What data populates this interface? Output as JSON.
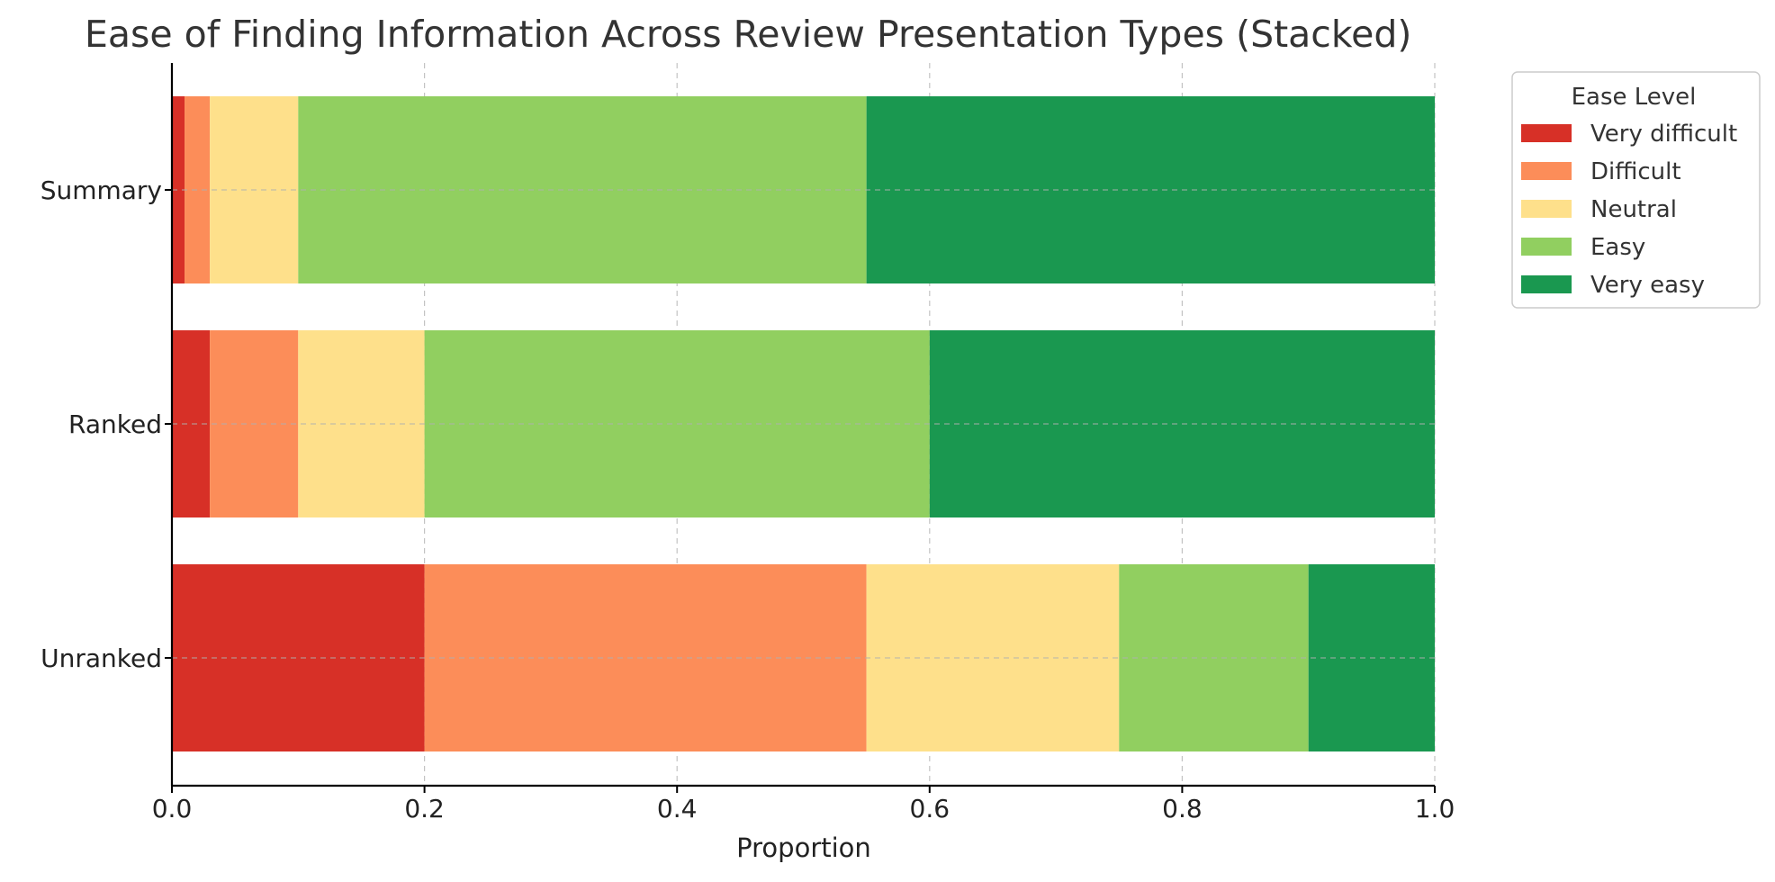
{
  "chart_data": {
    "type": "bar",
    "orientation": "horizontal",
    "stacked": true,
    "title": "Ease of Finding Information Across Review Presentation Types (Stacked)",
    "xlabel": "Proportion",
    "ylabel": "",
    "xlim": [
      0,
      1
    ],
    "xticks": [
      "0.0",
      "0.2",
      "0.4",
      "0.6",
      "0.8",
      "1.0"
    ],
    "grid": true,
    "categories": [
      "Summary",
      "Ranked",
      "Unranked"
    ],
    "series": [
      {
        "name": "Very difficult",
        "color": "#d73027",
        "values": [
          0.01,
          0.03,
          0.2
        ]
      },
      {
        "name": "Difficult",
        "color": "#fc8d59",
        "values": [
          0.02,
          0.07,
          0.35
        ]
      },
      {
        "name": "Neutral",
        "color": "#fee08b",
        "values": [
          0.07,
          0.1,
          0.2
        ]
      },
      {
        "name": "Easy",
        "color": "#91cf60",
        "values": [
          0.45,
          0.4,
          0.15
        ]
      },
      {
        "name": "Very easy",
        "color": "#1a9850",
        "values": [
          0.45,
          0.4,
          0.1
        ]
      }
    ],
    "legend": {
      "title": "Ease Level",
      "position": "upper-right-outside"
    }
  }
}
